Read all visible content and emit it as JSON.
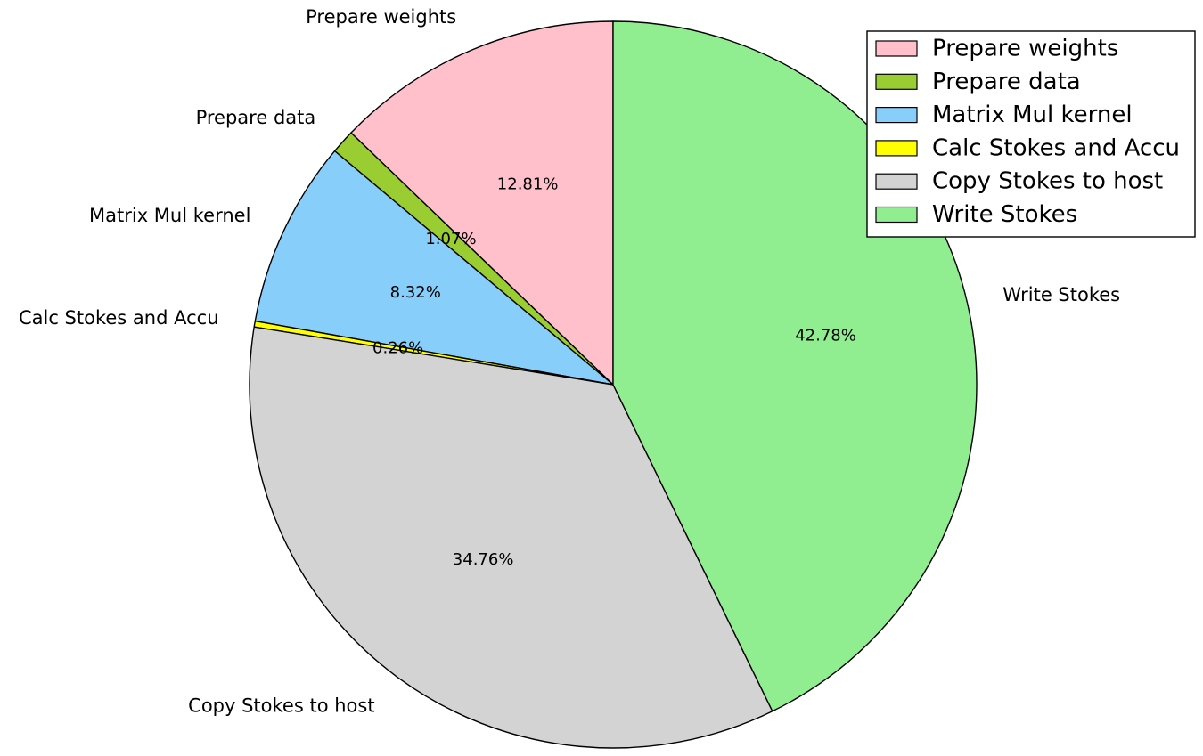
{
  "chart_data": {
    "type": "pie",
    "title": "",
    "start_angle_deg": 90,
    "direction": "counterclockwise",
    "legend_position": "top-right",
    "slices": [
      {
        "label": "Prepare weights",
        "value": 12.81,
        "pct_label": "12.81%",
        "color": "#ffc0cb"
      },
      {
        "label": "Prepare data",
        "value": 1.07,
        "pct_label": "1.07%",
        "color": "#9acd32"
      },
      {
        "label": "Matrix Mul kernel",
        "value": 8.32,
        "pct_label": "8.32%",
        "color": "#87cefa"
      },
      {
        "label": "Calc Stokes and Accu",
        "value": 0.26,
        "pct_label": "0.26%",
        "color": "#ffff00"
      },
      {
        "label": "Copy Stokes to host",
        "value": 34.76,
        "pct_label": "34.76%",
        "color": "#d3d3d3"
      },
      {
        "label": "Write Stokes",
        "value": 42.78,
        "pct_label": "42.78%",
        "color": "#90ee90"
      }
    ]
  }
}
